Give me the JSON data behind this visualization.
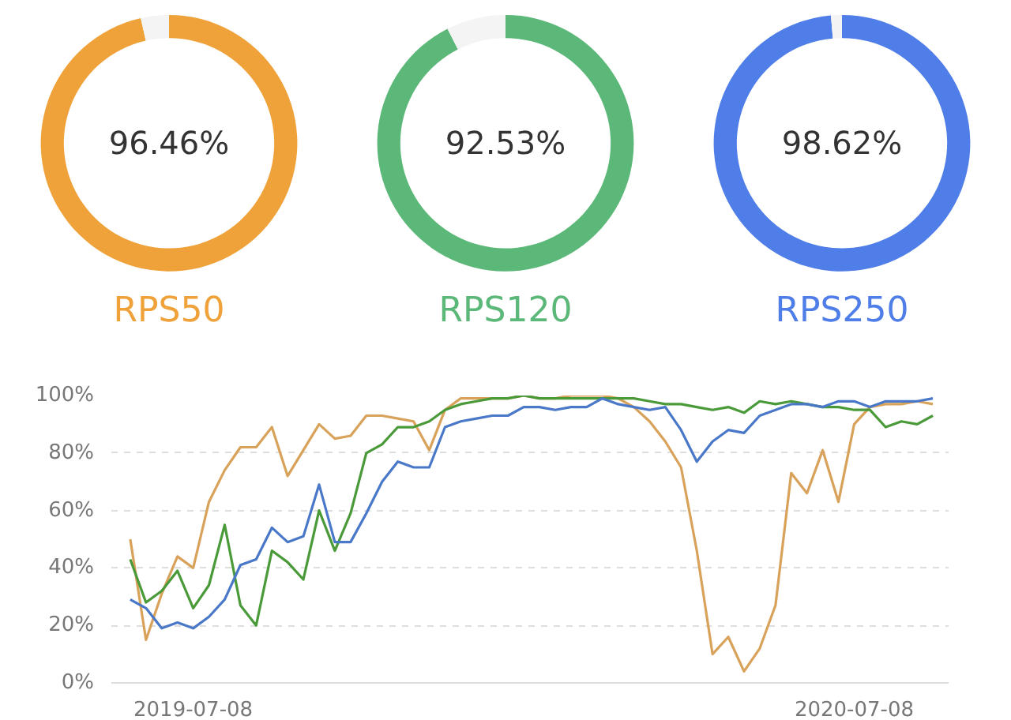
{
  "chart_data": [
    {
      "type": "donut",
      "title": "RPS50",
      "categories": [
        null,
        null
      ],
      "values": [
        96.46,
        3.54
      ],
      "colors": [
        "#f0a23a",
        "#f4f4f4"
      ],
      "value_labels": [
        "96.46%",
        null
      ]
    },
    {
      "type": "donut",
      "title": "RPS120",
      "categories": [
        null,
        null
      ],
      "values": [
        92.53,
        7.47
      ],
      "colors": [
        "#5cb878",
        "#f4f4f4"
      ],
      "value_labels": [
        "92.53%",
        null
      ]
    },
    {
      "type": "donut",
      "title": "RPS250",
      "categories": [
        null,
        null
      ],
      "values": [
        98.62,
        1.38
      ],
      "colors": [
        "#4f7ee8",
        "#f4f4f4"
      ],
      "value_labels": [
        "98.62%",
        null
      ]
    },
    {
      "type": "line",
      "categories": [
        null,
        null,
        null,
        null,
        "2019-07-08",
        null,
        null,
        null,
        null,
        null,
        null,
        null,
        null,
        null,
        null,
        null,
        null,
        null,
        null,
        null,
        null,
        null,
        null,
        null,
        null,
        null,
        null,
        null,
        null,
        null,
        null,
        null,
        null,
        null,
        null,
        null,
        null,
        null,
        null,
        null,
        null,
        null,
        null,
        null,
        null,
        null,
        "2020-07-08",
        null,
        null,
        null,
        null,
        null
      ],
      "ylim": [
        0,
        100
      ],
      "yticks": [
        {
          "value": 0,
          "label": "0%"
        },
        {
          "value": 20,
          "label": "20%"
        },
        {
          "value": 40,
          "label": "40%"
        },
        {
          "value": 60,
          "label": "60%"
        },
        {
          "value": 80,
          "label": "80%"
        },
        {
          "value": 100,
          "label": "100%"
        }
      ],
      "grid": "y",
      "series": [
        {
          "color": "#d9a25a",
          "values": [
            50,
            15,
            31,
            44,
            40,
            63,
            74,
            82,
            82,
            89,
            72,
            81,
            90,
            85,
            86,
            93,
            93,
            92,
            91,
            81,
            95,
            99,
            99,
            99,
            99,
            100,
            99,
            99,
            100,
            100,
            100,
            99,
            96,
            91,
            84,
            75,
            46,
            10,
            16,
            4,
            12,
            27,
            73,
            66,
            81,
            63,
            90,
            96,
            97,
            97,
            98,
            97
          ]
        },
        {
          "color": "#4a9a3a",
          "values": [
            43,
            28,
            32,
            39,
            26,
            34,
            55,
            27,
            20,
            46,
            42,
            36,
            60,
            46,
            59,
            80,
            83,
            89,
            89,
            91,
            95,
            97,
            98,
            99,
            99,
            100,
            99,
            99,
            99,
            99,
            99,
            99,
            99,
            98,
            97,
            97,
            96,
            95,
            96,
            94,
            98,
            97,
            98,
            97,
            96,
            96,
            95,
            95,
            89,
            91,
            90,
            93
          ]
        },
        {
          "color": "#4a78c8",
          "values": [
            29,
            26,
            19,
            21,
            19,
            23,
            29,
            41,
            43,
            54,
            49,
            51,
            69,
            49,
            49,
            59,
            70,
            77,
            75,
            75,
            89,
            91,
            92,
            93,
            93,
            96,
            96,
            95,
            96,
            96,
            99,
            97,
            96,
            95,
            96,
            88,
            77,
            84,
            88,
            87,
            93,
            95,
            97,
            97,
            96,
            98,
            98,
            96,
            98,
            98,
            98,
            99
          ]
        }
      ]
    }
  ]
}
